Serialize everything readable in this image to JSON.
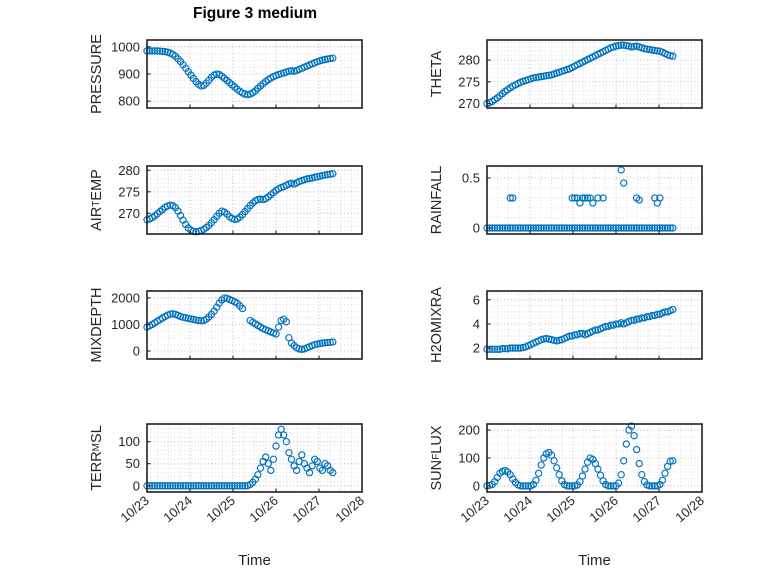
{
  "title": "Figure 3 medium",
  "colors": {
    "marker": "#0072BD",
    "axis": "#1f1f1f",
    "text": "#262626",
    "grid_minor": "#dcdcdc",
    "grid_major": "#c0c0c0"
  },
  "chart_data": {
    "type": "scatter",
    "title": "Figure 3 medium",
    "xlabel": "Time",
    "grid": true,
    "legend": "none",
    "xlim": [
      0,
      5
    ],
    "x_minor": 0.25,
    "x_ticks": [
      0,
      1,
      2,
      3,
      4,
      5
    ],
    "x_tick_labels": [
      "10/23",
      "10/24",
      "10/25",
      "10/26",
      "10/27",
      "10/28"
    ],
    "marker_color": "#0072BD",
    "x_days": [
      0,
      0.06,
      0.12,
      0.18,
      0.24,
      0.3,
      0.36,
      0.42,
      0.48,
      0.54,
      0.6,
      0.66,
      0.72,
      0.78,
      0.84,
      0.9,
      0.96,
      1.02,
      1.08,
      1.14,
      1.2,
      1.26,
      1.32,
      1.38,
      1.44,
      1.5,
      1.56,
      1.62,
      1.68,
      1.74,
      1.8,
      1.86,
      1.92,
      1.98,
      2.04,
      2.1,
      2.16,
      2.22,
      2.28,
      2.34,
      2.4,
      2.46,
      2.52,
      2.58,
      2.64,
      2.7,
      2.76,
      2.82,
      2.88,
      2.94,
      3,
      3.06,
      3.12,
      3.18,
      3.24,
      3.3,
      3.36,
      3.42,
      3.48,
      3.54,
      3.6,
      3.66,
      3.72,
      3.78,
      3.84,
      3.9,
      3.96,
      4.02,
      4.08,
      4.14,
      4.2,
      4.26,
      4.32
    ],
    "subplots": [
      {
        "id": "pressure",
        "ylabel_pre": "PRESSURE",
        "ylim": [
          775,
          1025
        ],
        "yticks": [
          800,
          900,
          1000
        ],
        "ytick_labels": [
          "800",
          "900",
          "1000"
        ],
        "y_minor": 25,
        "y": [
          985,
          985,
          985,
          985,
          985,
          984,
          983,
          982,
          980,
          977,
          972,
          965,
          956,
          946,
          934,
          921,
          908,
          896,
          884,
          872,
          862,
          856,
          858,
          866,
          877,
          888,
          896,
          900,
          898,
          892,
          884,
          876,
          868,
          860,
          852,
          844,
          836,
          830,
          826,
          824,
          826,
          831,
          838,
          847,
          856,
          864,
          872,
          879,
          885,
          890,
          894,
          898,
          901,
          904,
          907,
          910,
          912,
          910,
          913,
          917,
          921,
          925,
          929,
          933,
          937,
          941,
          945,
          948,
          951,
          953,
          955,
          957,
          958
        ]
      },
      {
        "id": "theta",
        "ylabel_pre": "THETA",
        "ylim": [
          269,
          284.6
        ],
        "yticks": [
          270,
          275,
          280
        ],
        "ytick_labels": [
          "270",
          "275",
          "280"
        ],
        "y_minor": 1,
        "y": [
          270,
          270.2,
          270.5,
          270.9,
          271.3,
          271.8,
          272.3,
          272.8,
          273.2,
          273.6,
          274,
          274.3,
          274.6,
          274.9,
          275.1,
          275.3,
          275.5,
          275.7,
          275.9,
          276,
          276.1,
          276.2,
          276.3,
          276.4,
          276.5,
          276.6,
          276.8,
          277,
          277.2,
          277.4,
          277.6,
          277.8,
          278,
          278.3,
          278.6,
          278.9,
          279.2,
          279.5,
          279.8,
          280.1,
          280.4,
          280.7,
          281,
          281.3,
          281.6,
          281.9,
          282.2,
          282.5,
          282.8,
          283,
          283.2,
          283.3,
          283.4,
          283.4,
          283.3,
          283.2,
          283,
          283.1,
          283.2,
          283,
          282.8,
          282.6,
          282.5,
          282.4,
          282.3,
          282.2,
          282.1,
          282,
          281.8,
          281.5,
          281.2,
          281,
          280.9
        ]
      },
      {
        "id": "air-temp",
        "ylabel_pre": "AIR",
        "ylabel_sub": "T",
        "ylabel_post": "EMP",
        "ylim": [
          265.2,
          281
        ],
        "yticks": [
          270,
          275,
          280
        ],
        "ytick_labels": [
          "270",
          "275",
          "280"
        ],
        "y_minor": 1,
        "y": [
          268.5,
          268.7,
          269,
          269.4,
          269.9,
          270.4,
          270.9,
          271.4,
          271.7,
          271.9,
          271.8,
          271.3,
          270.5,
          269.5,
          268.4,
          267.4,
          266.6,
          266.1,
          265.8,
          265.7,
          265.8,
          266,
          266.3,
          266.7,
          267.2,
          267.8,
          268.5,
          269.3,
          270,
          270.5,
          270.3,
          269.8,
          269.2,
          268.8,
          268.6,
          268.7,
          269.1,
          269.7,
          270.4,
          271.1,
          271.8,
          272.4,
          272.9,
          273.2,
          273.3,
          273.2,
          273.4,
          273.8,
          274.3,
          274.8,
          275.3,
          275.7,
          276,
          276.2,
          276.5,
          276.8,
          277,
          276.8,
          277.1,
          277.4,
          277.6,
          277.8,
          278,
          278.1,
          278.2,
          278.4,
          278.5,
          278.6,
          278.8,
          278.9,
          279,
          279.1,
          279.2
        ]
      },
      {
        "id": "rainfall",
        "ylabel_pre": "RAINFALL",
        "ylim": [
          -0.06,
          0.62
        ],
        "yticks": [
          0,
          0.5
        ],
        "ytick_labels": [
          "0",
          "0.5"
        ],
        "y_minor": 0.1,
        "y": [
          0,
          0,
          0,
          0,
          0,
          0,
          0,
          0,
          0,
          0,
          0,
          0,
          0,
          0,
          0,
          0,
          0,
          0,
          0,
          0,
          0,
          0,
          0,
          0,
          0,
          0,
          0,
          0,
          0,
          0,
          0,
          0,
          0,
          0,
          0,
          0,
          0,
          0,
          0,
          0,
          0,
          0,
          0,
          0,
          0,
          0,
          0,
          0,
          0,
          0,
          0,
          0,
          0,
          0,
          0,
          0,
          0,
          0,
          0,
          0,
          0,
          0,
          0,
          0,
          0,
          0,
          0,
          0,
          0,
          0,
          0,
          0,
          0
        ],
        "x_extra": [
          0.54,
          0.6,
          1.98,
          2.04,
          2.1,
          2.16,
          2.22,
          2.28,
          2.34,
          2.4,
          2.46,
          2.58,
          2.7,
          3.12,
          3.18,
          3.48,
          3.54,
          3.9,
          3.96,
          4.02
        ],
        "y_extra": [
          0.3,
          0.3,
          0.3,
          0.3,
          0.3,
          0.25,
          0.3,
          0.3,
          0.3,
          0.3,
          0.25,
          0.3,
          0.3,
          0.58,
          0.45,
          0.3,
          0.28,
          0.3,
          0.25,
          0.3
        ]
      },
      {
        "id": "mixdepth",
        "ylabel_pre": "MIXDEPTH",
        "ylim": [
          -300,
          2260
        ],
        "yticks": [
          0,
          1000,
          2000
        ],
        "ytick_labels": [
          "0",
          "1000",
          "2000"
        ],
        "y_minor": 250,
        "y": [
          900,
          950,
          1000,
          1060,
          1120,
          1180,
          1240,
          1300,
          1350,
          1390,
          1400,
          1380,
          1340,
          1300,
          1270,
          1250,
          1230,
          1210,
          1190,
          1170,
          1150,
          1140,
          1150,
          1200,
          1280,
          1380,
          1500,
          1650,
          1800,
          1920,
          2000,
          1980,
          1940,
          1900,
          1850,
          1800,
          1700,
          1600,
          null,
          null,
          1150,
          1080,
          1020,
          960,
          900,
          840,
          800,
          760,
          720,
          680,
          640,
          900,
          1150,
          1200,
          1100,
          500,
          300,
          200,
          120,
          80,
          60,
          80,
          120,
          160,
          200,
          240,
          260,
          280,
          300,
          310,
          320,
          330,
          340
        ]
      },
      {
        "id": "h2omixra",
        "ylabel_pre": "H2OMIXRA",
        "ylim": [
          1.1,
          6.73
        ],
        "yticks": [
          2,
          4,
          6
        ],
        "ytick_labels": [
          "2",
          "4",
          "6"
        ],
        "y_minor": 0.5,
        "y": [
          1.9,
          1.9,
          1.9,
          1.9,
          1.9,
          1.9,
          1.95,
          1.95,
          1.95,
          2,
          2,
          2,
          2,
          2,
          2.05,
          2.1,
          2.2,
          2.3,
          2.4,
          2.5,
          2.6,
          2.7,
          2.75,
          2.8,
          2.75,
          2.7,
          2.65,
          2.6,
          2.65,
          2.7,
          2.8,
          2.9,
          3,
          3,
          3.1,
          3.1,
          3.2,
          3.2,
          3.1,
          3.2,
          3.3,
          3.4,
          3.5,
          3.5,
          3.6,
          3.7,
          3.8,
          3.8,
          3.9,
          3.9,
          4,
          4,
          4.1,
          4,
          4.1,
          4.2,
          4.3,
          4.3,
          4.4,
          4.4,
          4.5,
          4.5,
          4.6,
          4.6,
          4.7,
          4.7,
          4.8,
          4.8,
          4.9,
          5,
          5,
          5.1,
          5.2
        ]
      },
      {
        "id": "terr-msl",
        "ylabel_pre": "TERR",
        "ylabel_sub": "M",
        "ylabel_post": "SL",
        "ylim": [
          -14,
          140
        ],
        "yticks": [
          0,
          50,
          100
        ],
        "ytick_labels": [
          "0",
          "50",
          "100"
        ],
        "y_minor": 10,
        "y": [
          0,
          0,
          0,
          0,
          0,
          0,
          0,
          0,
          0,
          0,
          0,
          0,
          0,
          0,
          0,
          0,
          0,
          0,
          0,
          0,
          0,
          0,
          0,
          0,
          0,
          0,
          0,
          0,
          0,
          0,
          0,
          0,
          0,
          0,
          0,
          0,
          0,
          0,
          0,
          0,
          3,
          8,
          15,
          25,
          40,
          55,
          65,
          50,
          35,
          60,
          90,
          115,
          128,
          115,
          100,
          75,
          60,
          45,
          35,
          55,
          70,
          50,
          40,
          30,
          45,
          60,
          55,
          40,
          35,
          50,
          45,
          35,
          30
        ]
      },
      {
        "id": "sun-flux",
        "ylabel_pre": "SUN",
        "ylabel_sub": "F",
        "ylabel_post": "LUX",
        "ylim": [
          -22,
          222
        ],
        "yticks": [
          0,
          100,
          200
        ],
        "ytick_labels": [
          "0",
          "100",
          "200"
        ],
        "y_minor": 25,
        "y": [
          0,
          2,
          5,
          15,
          30,
          45,
          52,
          55,
          50,
          40,
          25,
          12,
          4,
          0,
          0,
          0,
          0,
          0,
          5,
          20,
          45,
          75,
          100,
          115,
          120,
          110,
          90,
          65,
          40,
          18,
          5,
          0,
          0,
          0,
          0,
          3,
          15,
          35,
          60,
          85,
          100,
          95,
          80,
          60,
          38,
          18,
          5,
          0,
          0,
          0,
          0,
          10,
          40,
          90,
          150,
          200,
          215,
          180,
          130,
          80,
          40,
          15,
          3,
          0,
          0,
          0,
          0,
          5,
          20,
          45,
          70,
          88,
          90
        ]
      }
    ]
  },
  "xlabel_left": "Time",
  "xlabel_right": "Time"
}
